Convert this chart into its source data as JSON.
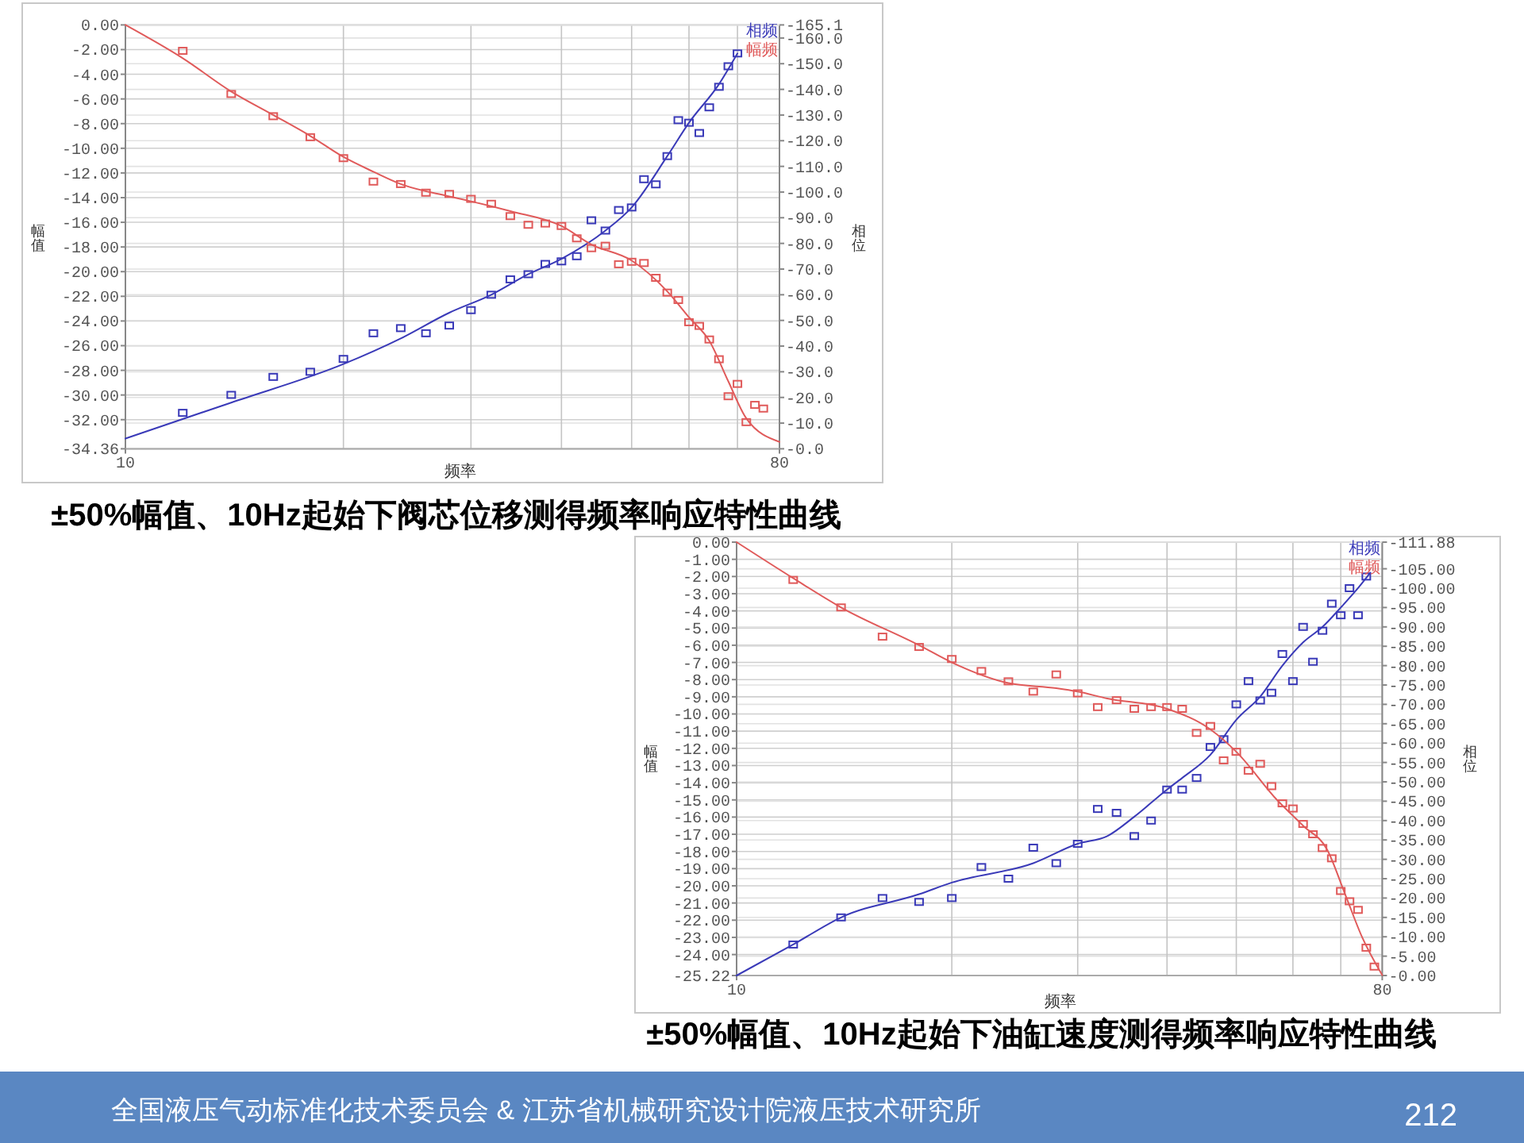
{
  "chart_data": [
    {
      "type": "line",
      "title": "±50%幅值、10Hz起始下阀芯位移测得频率响应特性曲线",
      "xlabel": "频率",
      "ylabel": "幅值",
      "y2label": "相位",
      "log": "x",
      "grid": true,
      "legend": "top right",
      "xlim": [
        10,
        80
      ],
      "xticks": [
        {
          "value": 10,
          "label": "10"
        },
        {
          "value": 20,
          "label": null
        },
        {
          "value": 30,
          "label": null
        },
        {
          "value": 40,
          "label": null
        },
        {
          "value": 50,
          "label": null
        },
        {
          "value": 60,
          "label": null
        },
        {
          "value": 70,
          "label": null
        },
        {
          "value": 80,
          "label": "80"
        }
      ],
      "ylim": [
        -34.36,
        0
      ],
      "yticks": [
        {
          "value": 0,
          "label": "0.00"
        },
        {
          "value": -2,
          "label": "-2.00"
        },
        {
          "value": -4,
          "label": "-4.00"
        },
        {
          "value": -6,
          "label": "-6.00"
        },
        {
          "value": -8,
          "label": "-8.00"
        },
        {
          "value": -10,
          "label": "-10.00"
        },
        {
          "value": -12,
          "label": "-12.00"
        },
        {
          "value": -14,
          "label": "-14.00"
        },
        {
          "value": -16,
          "label": "-16.00"
        },
        {
          "value": -18,
          "label": "-18.00"
        },
        {
          "value": -20,
          "label": "-20.00"
        },
        {
          "value": -22,
          "label": "-22.00"
        },
        {
          "value": -24,
          "label": "-24.00"
        },
        {
          "value": -26,
          "label": "-26.00"
        },
        {
          "value": -28,
          "label": "-28.00"
        },
        {
          "value": -30,
          "label": "-30.00"
        },
        {
          "value": -32,
          "label": "-32.00"
        },
        {
          "value": -34.36,
          "label": "-34.36"
        }
      ],
      "y2lim": [
        0,
        -165.1
      ],
      "y2ticks": [
        {
          "value": 0,
          "label": "-0.0"
        },
        {
          "value": -10,
          "label": "-10.0"
        },
        {
          "value": -20,
          "label": "-20.0"
        },
        {
          "value": -30,
          "label": "-30.0"
        },
        {
          "value": -40,
          "label": "-40.0"
        },
        {
          "value": -50,
          "label": "-50.0"
        },
        {
          "value": -60,
          "label": "-60.0"
        },
        {
          "value": -70,
          "label": "-70.0"
        },
        {
          "value": -80,
          "label": "-80.0"
        },
        {
          "value": -90,
          "label": "-90.0"
        },
        {
          "value": -100,
          "label": "-100.0"
        },
        {
          "value": -110,
          "label": "-110.0"
        },
        {
          "value": -120,
          "label": "-120.0"
        },
        {
          "value": -130,
          "label": "-130.0"
        },
        {
          "value": -140,
          "label": "-140.0"
        },
        {
          "value": -150,
          "label": "-150.0"
        },
        {
          "value": -160,
          "label": "-160.0"
        },
        {
          "value": -165.1,
          "label": "-165.1"
        }
      ],
      "series": [
        {
          "name": "相频",
          "color": "#3a3ab8",
          "axis": "y2",
          "x": [
            10,
            14,
            20,
            24,
            28,
            32,
            36,
            40,
            46,
            50,
            56,
            60,
            66,
            70
          ],
          "values": [
            -4,
            -18,
            -33,
            -43,
            -53,
            -60,
            -68,
            -74,
            -85,
            -94,
            -114,
            -127,
            -142,
            -154
          ]
        },
        {
          "type": "scatter",
          "color": "#3a3ab8",
          "axis": "y2",
          "marker": "square",
          "x": [
            12,
            14,
            16,
            18,
            20,
            22,
            24,
            26,
            28,
            30,
            32,
            34,
            36,
            38,
            40,
            42,
            44,
            46,
            48,
            50,
            52,
            54,
            56,
            58,
            60,
            62,
            64,
            66,
            68,
            70
          ],
          "values": [
            -14,
            -21,
            -28,
            -30,
            -35,
            -45,
            -47,
            -45,
            -48,
            -54,
            -60,
            -66,
            -68,
            -72,
            -73,
            -75,
            -89,
            -85,
            -93,
            -94,
            -105,
            -103,
            -114,
            -128,
            -127,
            -123,
            -133,
            -141,
            -149,
            -154
          ]
        },
        {
          "name": "幅频",
          "color": "#e05a5a",
          "x": [
            10,
            12,
            14,
            16,
            18,
            20,
            22,
            24,
            28,
            30,
            34,
            40,
            44,
            50,
            56,
            60,
            64,
            68,
            72,
            80
          ],
          "values": [
            0,
            -2.7,
            -5.4,
            -7.3,
            -9.0,
            -10.7,
            -11.9,
            -12.9,
            -13.9,
            -14.3,
            -15.1,
            -16.3,
            -17.8,
            -19.1,
            -21.6,
            -23.7,
            -25.6,
            -28.9,
            -31.9,
            -33.8
          ]
        },
        {
          "type": "scatter",
          "color": "#e05a5a",
          "marker": "square",
          "x": [
            12,
            14,
            16,
            18,
            20,
            22,
            24,
            26,
            28,
            30,
            32,
            34,
            36,
            38,
            40,
            42,
            44,
            46,
            48,
            50,
            52,
            54,
            56,
            58,
            60,
            62,
            64,
            66,
            68,
            70,
            72,
            74,
            76
          ],
          "values": [
            -2.1,
            -5.6,
            -7.4,
            -9.1,
            -10.8,
            -12.7,
            -12.9,
            -13.6,
            -13.7,
            -14.1,
            -14.5,
            -15.5,
            -16.2,
            -16.1,
            -16.3,
            -17.3,
            -18.1,
            -17.9,
            -19.4,
            -19.2,
            -19.3,
            -20.5,
            -21.7,
            -22.3,
            -24.1,
            -24.4,
            -25.5,
            -27.1,
            -30.1,
            -29.1,
            -32.2,
            -30.8,
            -31.1
          ]
        }
      ]
    },
    {
      "type": "line",
      "title": "±50%幅值、10Hz起始下油缸速度测得频率响应特性曲线",
      "xlabel": "频率",
      "ylabel": "幅值",
      "y2label": "相位",
      "log": "x",
      "grid": true,
      "legend": "top right",
      "annotations": [
        "全国液压气动标准化技术委员会 & 江苏省机械研究设计院液压技术研究所",
        "212"
      ],
      "xlim": [
        10,
        80
      ],
      "xticks": [
        {
          "value": 10,
          "label": "10"
        },
        {
          "value": 20,
          "label": null
        },
        {
          "value": 30,
          "label": null
        },
        {
          "value": 40,
          "label": null
        },
        {
          "value": 50,
          "label": null
        },
        {
          "value": 60,
          "label": null
        },
        {
          "value": 70,
          "label": null
        },
        {
          "value": 80,
          "label": "80"
        }
      ],
      "ylim": [
        -25.22,
        0
      ],
      "yticks": [
        {
          "value": 0,
          "label": "0.00"
        },
        {
          "value": -1,
          "label": "-1.00"
        },
        {
          "value": -2,
          "label": "-2.00"
        },
        {
          "value": -3,
          "label": "-3.00"
        },
        {
          "value": -4,
          "label": "-4.00"
        },
        {
          "value": -5,
          "label": "-5.00"
        },
        {
          "value": -6,
          "label": "-6.00"
        },
        {
          "value": -7,
          "label": "-7.00"
        },
        {
          "value": -8,
          "label": "-8.00"
        },
        {
          "value": -9,
          "label": "-9.00"
        },
        {
          "value": -10,
          "label": "-10.00"
        },
        {
          "value": -11,
          "label": "-11.00"
        },
        {
          "value": -12,
          "label": "-12.00"
        },
        {
          "value": -13,
          "label": "-13.00"
        },
        {
          "value": -14,
          "label": "-14.00"
        },
        {
          "value": -15,
          "label": "-15.00"
        },
        {
          "value": -16,
          "label": "-16.00"
        },
        {
          "value": -17,
          "label": "-17.00"
        },
        {
          "value": -18,
          "label": "-18.00"
        },
        {
          "value": -19,
          "label": "-19.00"
        },
        {
          "value": -20,
          "label": "-20.00"
        },
        {
          "value": -21,
          "label": "-21.00"
        },
        {
          "value": -22,
          "label": "-22.00"
        },
        {
          "value": -23,
          "label": "-23.00"
        },
        {
          "value": -24,
          "label": "-24.00"
        },
        {
          "value": -25.22,
          "label": "-25.22"
        }
      ],
      "y2lim": [
        0,
        -111.88
      ],
      "y2ticks": [
        {
          "value": 0,
          "label": "-0.00"
        },
        {
          "value": -5,
          "label": "-5.00"
        },
        {
          "value": -10,
          "label": "-10.00"
        },
        {
          "value": -15,
          "label": "-15.00"
        },
        {
          "value": -20,
          "label": "-20.00"
        },
        {
          "value": -25,
          "label": "-25.00"
        },
        {
          "value": -30,
          "label": "-30.00"
        },
        {
          "value": -35,
          "label": "-35.00"
        },
        {
          "value": -40,
          "label": "-40.00"
        },
        {
          "value": -45,
          "label": "-45.00"
        },
        {
          "value": -50,
          "label": "-50.00"
        },
        {
          "value": -55,
          "label": "-55.00"
        },
        {
          "value": -60,
          "label": "-60.00"
        },
        {
          "value": -65,
          "label": "-65.00"
        },
        {
          "value": -70,
          "label": "-70.00"
        },
        {
          "value": -75,
          "label": "-75.00"
        },
        {
          "value": -80,
          "label": "-80.00"
        },
        {
          "value": -85,
          "label": "-85.00"
        },
        {
          "value": -90,
          "label": "-90.00"
        },
        {
          "value": -95,
          "label": "-95.00"
        },
        {
          "value": -100,
          "label": "-100.00"
        },
        {
          "value": -105,
          "label": "-105.00"
        },
        {
          "value": -111.88,
          "label": "-111.88"
        }
      ],
      "series": [
        {
          "name": "相频",
          "color": "#3a3ab8",
          "axis": "y2",
          "x": [
            10,
            12,
            14,
            18,
            20,
            26,
            30,
            33,
            36,
            40,
            42,
            46,
            50,
            54,
            58,
            62,
            66,
            70,
            74,
            77
          ],
          "values": [
            0,
            -8,
            -15,
            -21,
            -24,
            -29,
            -34,
            -36,
            -41,
            -48,
            -51,
            -57,
            -66,
            -72,
            -80,
            -86,
            -90,
            -95,
            -100,
            -104
          ]
        },
        {
          "type": "scatter",
          "color": "#3a3ab8",
          "axis": "y2",
          "marker": "square",
          "x": [
            12,
            14,
            16,
            18,
            20,
            22,
            24,
            26,
            28,
            30,
            32,
            34,
            36,
            38,
            40,
            42,
            44,
            46,
            48,
            50,
            52,
            54,
            56,
            58,
            60,
            62,
            64,
            66,
            68,
            70,
            72,
            74,
            76
          ],
          "values": [
            -8,
            -15,
            -20,
            -19,
            -20,
            -28,
            -25,
            -33,
            -29,
            -34,
            -43,
            -42,
            -36,
            -40,
            -48,
            -48,
            -51,
            -59,
            -61,
            -70,
            -76,
            -71,
            -73,
            -83,
            -76,
            -90,
            -81,
            -89,
            -96,
            -93,
            -100,
            -93,
            -103
          ]
        },
        {
          "name": "幅频",
          "color": "#e05a5a",
          "x": [
            10,
            12,
            14,
            18,
            20,
            24,
            28,
            30,
            33,
            40,
            46,
            50,
            57,
            62,
            67,
            71,
            75,
            80
          ],
          "values": [
            0,
            -2.1,
            -3.8,
            -6.0,
            -7.0,
            -8.2,
            -8.5,
            -8.7,
            -9.1,
            -9.7,
            -10.9,
            -12.2,
            -15.0,
            -16.5,
            -17.9,
            -20.5,
            -23.0,
            -25.2
          ]
        },
        {
          "type": "scatter",
          "color": "#e05a5a",
          "marker": "square",
          "x": [
            12,
            14,
            16,
            18,
            20,
            22,
            24,
            26,
            28,
            30,
            32,
            34,
            36,
            38,
            40,
            42,
            44,
            46,
            48,
            50,
            52,
            54,
            56,
            58,
            60,
            62,
            64,
            66,
            68,
            70,
            72,
            74,
            76,
            78
          ],
          "values": [
            -2.2,
            -3.8,
            -5.5,
            -6.1,
            -6.8,
            -7.5,
            -8.1,
            -8.7,
            -7.7,
            -8.8,
            -9.6,
            -9.2,
            -9.7,
            -9.6,
            -9.6,
            -9.7,
            -11.1,
            -10.7,
            -12.7,
            -12.2,
            -13.3,
            -12.9,
            -14.2,
            -15.2,
            -15.5,
            -16.4,
            -17.0,
            -17.8,
            -18.4,
            -20.3,
            -20.9,
            -21.4,
            -23.6,
            -24.7
          ]
        }
      ]
    }
  ]
}
